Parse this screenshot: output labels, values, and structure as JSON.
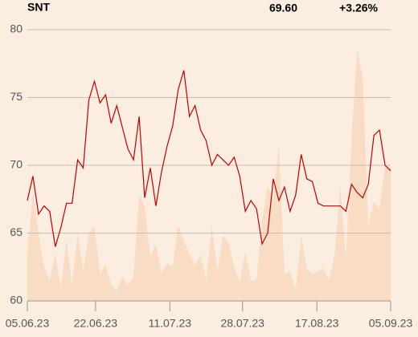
{
  "chart_data": {
    "type": "line",
    "title": "SNT",
    "last_price": "69.60",
    "change": "+3.26%",
    "change_color": "#1a9a1a",
    "x": [
      0,
      1,
      2,
      3,
      4,
      5,
      6,
      7,
      8,
      9,
      10,
      11,
      12,
      13,
      14,
      15,
      16,
      17,
      18,
      19,
      20,
      21,
      22,
      23,
      24,
      25,
      26,
      27,
      28,
      29,
      30,
      31,
      32,
      33,
      34,
      35,
      36,
      37,
      38,
      39,
      40,
      41,
      42,
      43,
      44,
      45,
      46,
      47,
      48,
      49,
      50,
      51,
      52,
      53,
      54,
      55,
      56,
      57,
      58,
      59,
      60,
      61,
      62,
      63,
      64,
      65
    ],
    "xlim": [
      0,
      65
    ],
    "xticks": [
      {
        "value": 0,
        "label": "05.06.23"
      },
      {
        "value": 12.2,
        "label": "22.06.23"
      },
      {
        "value": 25.5,
        "label": "11.07.23"
      },
      {
        "value": 38.5,
        "label": "28.07.23"
      },
      {
        "value": 51.8,
        "label": "17.08.23"
      },
      {
        "value": 65,
        "label": "05.09.23"
      }
    ],
    "ylim": [
      60,
      80
    ],
    "yticks": [
      60,
      65,
      70,
      75,
      80
    ],
    "grid": true,
    "series": [
      {
        "type": "area",
        "color": "#f9dcc4",
        "values": [
          63.5,
          68,
          65,
          62.5,
          61.5,
          63.5,
          61,
          64.5,
          61.2,
          65,
          62.2,
          65,
          65.5,
          62,
          62.7,
          61.2,
          60.8,
          61.8,
          61.2,
          61.8,
          67.8,
          67,
          63.2,
          64.2,
          62,
          62.8,
          62.5,
          65.6,
          64.5,
          63.4,
          62.6,
          63.4,
          61.5,
          65.5,
          62.2,
          64.8,
          64.3,
          62.5,
          61.4,
          63.6,
          61.5,
          61.5,
          66,
          68.5,
          67.5,
          71.5,
          62,
          62.2,
          60.8,
          64.8,
          62.4,
          62,
          62.2,
          62.4,
          61.5,
          63.5,
          68.5,
          63,
          72,
          78.5,
          76.5,
          65.5,
          67.3,
          66.8,
          70,
          69.8
        ]
      },
      {
        "type": "line",
        "color": "#c00000",
        "values": [
          67.4,
          69.2,
          66.4,
          67,
          66.6,
          64,
          65.4,
          67.2,
          67.2,
          70.4,
          69.8,
          74.8,
          76.2,
          74.6,
          75.2,
          73.1,
          74.4,
          72.8,
          71.2,
          70.4,
          73.6,
          67.6,
          69.8,
          67,
          69.5,
          71.4,
          72.9,
          75.6,
          77,
          73.6,
          74.4,
          72.6,
          71.8,
          70,
          70.8,
          70.4,
          70,
          70.6,
          69.2,
          66.6,
          67.4,
          66.8,
          64.2,
          65,
          69,
          67.4,
          68.4,
          66.6,
          67.8,
          70.8,
          69,
          68.8,
          67.2,
          67,
          67,
          67,
          67,
          66.6,
          68.6,
          68,
          67.6,
          68.6,
          72.2,
          72.6,
          70,
          69.6
        ]
      }
    ]
  }
}
